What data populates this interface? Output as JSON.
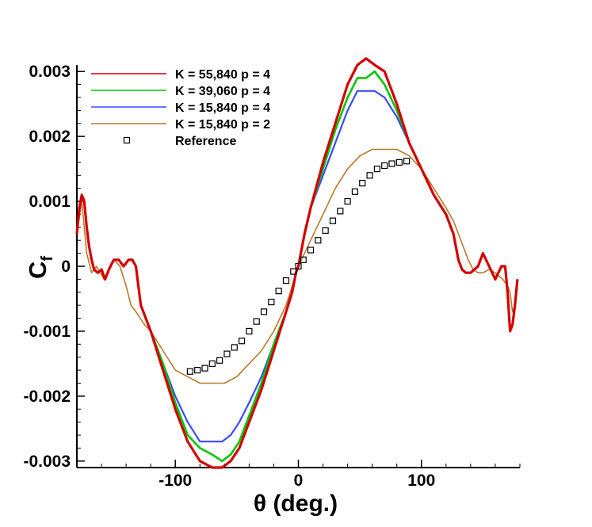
{
  "chart_data": {
    "type": "line",
    "title": "",
    "xlabel": "θ (deg.)",
    "ylabel": "C",
    "ylabel_subscript": "f",
    "xlim": [
      -180,
      180
    ],
    "ylim": [
      -0.0031,
      0.0031
    ],
    "x_ticks": [
      {
        "value": -100,
        "label": "-100"
      },
      {
        "value": 0,
        "label": "0"
      },
      {
        "value": 100,
        "label": "100"
      }
    ],
    "y_ticks": [
      {
        "value": 0.003,
        "label": "0.003"
      },
      {
        "value": 0.002,
        "label": "0.002"
      },
      {
        "value": 0.001,
        "label": "0.001"
      },
      {
        "value": 0,
        "label": "0"
      },
      {
        "value": -0.001,
        "label": "-0.001"
      },
      {
        "value": -0.002,
        "label": "-0.002"
      },
      {
        "value": -0.003,
        "label": "-0.003"
      }
    ],
    "grid": false,
    "legend_position": "top-left",
    "series": [
      {
        "name": "K = 55,840 p = 4",
        "color": "#d40000",
        "x": [
          -180,
          -178,
          -176,
          -174,
          -172,
          -170,
          -168,
          -166,
          -163,
          -160,
          -157,
          -154,
          -150,
          -146,
          -142,
          -138,
          -135,
          -132,
          -128,
          -120,
          -110,
          -100,
          -90,
          -80,
          -70,
          -62,
          -55,
          -48,
          -40,
          -30,
          -20,
          -10,
          -5,
          -2,
          0,
          2,
          5,
          10,
          20,
          30,
          40,
          48,
          55,
          62,
          70,
          80,
          90,
          100,
          110,
          120,
          126,
          128,
          130,
          133,
          136,
          140,
          143,
          146,
          150,
          155,
          160,
          165,
          168,
          170,
          172,
          174,
          176,
          178
        ],
        "values": [
          0.0005,
          0.0009,
          0.0011,
          0.001,
          0.0006,
          0.0003,
          0.0001,
          -5e-05,
          -0.0001,
          -5e-05,
          -0.0002,
          -5e-05,
          0.0001,
          0.0001,
          0.0,
          0.0001,
          0.0001,
          0.0,
          -0.0006,
          -0.001,
          -0.0016,
          -0.0022,
          -0.0027,
          -0.003,
          -0.0031,
          -0.0031,
          -0.003,
          -0.0028,
          -0.0024,
          -0.0019,
          -0.0013,
          -0.0007,
          -0.0004,
          -0.0001,
          0.0,
          0.0002,
          0.0005,
          0.0009,
          0.0016,
          0.0022,
          0.0028,
          0.0031,
          0.0032,
          0.0031,
          0.003,
          0.0025,
          0.0019,
          0.0015,
          0.0011,
          0.0008,
          0.0005,
          0.0003,
          0.0001,
          -5e-05,
          -0.0001,
          -0.0001,
          -5e-05,
          0.0,
          0.0002,
          0.0,
          -0.0002,
          0.0,
          0.0,
          -0.0004,
          -0.001,
          -0.0009,
          -0.0006,
          -0.0002
        ]
      },
      {
        "name": "K = 39,060 p = 4",
        "color": "#00c800",
        "x": [
          -180,
          -178,
          -176,
          -174,
          -172,
          -170,
          -168,
          -166,
          -163,
          -160,
          -157,
          -154,
          -150,
          -146,
          -142,
          -138,
          -135,
          -132,
          -128,
          -120,
          -110,
          -100,
          -90,
          -80,
          -70,
          -62,
          -55,
          -48,
          -40,
          -30,
          -20,
          -10,
          -5,
          -2,
          0,
          2,
          5,
          10,
          20,
          30,
          40,
          48,
          55,
          62,
          70,
          80,
          90,
          100,
          110,
          120,
          126,
          128,
          130,
          133,
          136,
          140,
          143,
          146,
          150,
          155,
          160,
          165,
          168,
          170,
          172,
          174,
          176,
          178
        ],
        "values": [
          0.0005,
          0.0009,
          0.0011,
          0.001,
          0.0006,
          0.0003,
          0.0001,
          -5e-05,
          -0.0001,
          -5e-05,
          -0.0002,
          -5e-05,
          0.0001,
          0.0001,
          0.0,
          0.0001,
          0.0001,
          0.0,
          -0.0006,
          -0.001,
          -0.0015,
          -0.0021,
          -0.0026,
          -0.0028,
          -0.0029,
          -0.003,
          -0.0029,
          -0.0027,
          -0.0023,
          -0.0018,
          -0.0012,
          -0.0007,
          -0.0004,
          -0.0001,
          0.0,
          0.0002,
          0.0005,
          0.0009,
          0.0015,
          0.0021,
          0.0026,
          0.0029,
          0.0029,
          0.003,
          0.0028,
          0.0024,
          0.0019,
          0.0015,
          0.0011,
          0.0008,
          0.0005,
          0.0003,
          0.0001,
          -5e-05,
          -0.0001,
          -0.0001,
          -5e-05,
          0.0,
          0.0002,
          0.0,
          -0.0002,
          0.0,
          0.0,
          -0.0004,
          -0.001,
          -0.0009,
          -0.0006,
          -0.0002
        ]
      },
      {
        "name": "K = 15,840 p = 4",
        "color": "#3a4bff",
        "x": [
          -180,
          -178,
          -176,
          -174,
          -172,
          -170,
          -168,
          -166,
          -163,
          -160,
          -157,
          -154,
          -150,
          -146,
          -142,
          -138,
          -135,
          -132,
          -128,
          -120,
          -110,
          -100,
          -90,
          -80,
          -70,
          -62,
          -55,
          -48,
          -40,
          -30,
          -20,
          -10,
          -5,
          -2,
          0,
          2,
          5,
          10,
          20,
          30,
          40,
          48,
          55,
          62,
          70,
          80,
          90,
          100,
          110,
          120,
          126,
          128,
          130,
          133,
          136,
          140,
          143,
          146,
          150,
          155,
          160,
          165,
          168,
          170,
          172,
          174,
          176,
          178
        ],
        "values": [
          0.0005,
          0.0009,
          0.0011,
          0.001,
          0.0006,
          0.0003,
          0.0001,
          -5e-05,
          -0.0001,
          -5e-05,
          -0.0002,
          -5e-05,
          0.0001,
          0.0001,
          0.0,
          0.0001,
          0.0001,
          0.0,
          -0.0006,
          -0.001,
          -0.0015,
          -0.002,
          -0.0024,
          -0.0027,
          -0.0027,
          -0.0027,
          -0.0026,
          -0.0024,
          -0.0021,
          -0.0017,
          -0.0012,
          -0.0007,
          -0.0004,
          -0.0001,
          0.0,
          0.0002,
          0.0005,
          0.0009,
          0.0014,
          0.0019,
          0.0024,
          0.0027,
          0.0027,
          0.0027,
          0.0026,
          0.0023,
          0.0019,
          0.0015,
          0.0011,
          0.0008,
          0.0005,
          0.0003,
          0.0001,
          -5e-05,
          -0.0001,
          -0.0001,
          -5e-05,
          0.0,
          0.0002,
          0.0,
          -0.0002,
          0.0,
          0.0,
          -0.0004,
          -0.001,
          -0.0009,
          -0.0006,
          -0.0002
        ]
      },
      {
        "name": "K = 15,840 p = 2",
        "color": "#b87a2a",
        "x": [
          -180,
          -176,
          -172,
          -168,
          -164,
          -158,
          -150,
          -145,
          -140,
          -136,
          -132,
          -125,
          -120,
          -110,
          -100,
          -90,
          -80,
          -70,
          -60,
          -50,
          -40,
          -30,
          -20,
          -10,
          0,
          10,
          20,
          30,
          40,
          50,
          60,
          70,
          80,
          90,
          100,
          110,
          120,
          126,
          130,
          134,
          138,
          142,
          146,
          150,
          155,
          160,
          166,
          170,
          172,
          174,
          176,
          178
        ],
        "values": [
          0.0005,
          0.001,
          0.0002,
          -0.0001,
          0.0,
          -0.0002,
          0.0001,
          0.0,
          -0.0003,
          -0.0006,
          -0.0007,
          -0.0009,
          -0.001,
          -0.0013,
          -0.0016,
          -0.0017,
          -0.0018,
          -0.0018,
          -0.0018,
          -0.0017,
          -0.0015,
          -0.0013,
          -0.001,
          -0.0006,
          0.0,
          0.0004,
          0.0008,
          0.0012,
          0.0015,
          0.0017,
          0.0018,
          0.0018,
          0.0018,
          0.0017,
          0.0015,
          0.0012,
          0.0009,
          0.0007,
          0.0005,
          0.0003,
          0.0001,
          -5e-05,
          -0.0001,
          -0.0001,
          -5e-05,
          -0.0001,
          -0.0002,
          -0.0003,
          -0.0004,
          -0.0007,
          -0.0006,
          -0.0003
        ]
      },
      {
        "name": "Reference",
        "color": "#000000",
        "marker": "square",
        "x": [
          -88,
          -82,
          -76,
          -70,
          -64,
          -58,
          -52,
          -46,
          -40,
          -34,
          -28,
          -22,
          -16,
          -10,
          -4,
          0,
          4,
          10,
          16,
          22,
          28,
          34,
          40,
          46,
          52,
          58,
          64,
          70,
          76,
          82,
          88
        ],
        "values": [
          -0.00162,
          -0.0016,
          -0.00157,
          -0.0015,
          -0.00145,
          -0.00135,
          -0.00125,
          -0.00115,
          -0.001,
          -0.00085,
          -0.0007,
          -0.00055,
          -0.00038,
          -0.00022,
          -8e-05,
          0.0,
          0.0001,
          0.00025,
          0.0004,
          0.00055,
          0.0007,
          0.00085,
          0.001,
          0.00115,
          0.00128,
          0.0014,
          0.0015,
          0.00155,
          0.00158,
          0.0016,
          0.00162
        ]
      }
    ]
  }
}
